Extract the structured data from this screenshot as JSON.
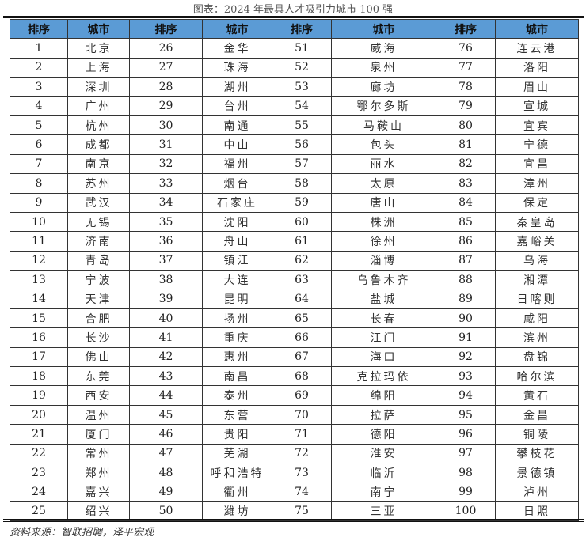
{
  "title": "图表：2024 年最具人才吸引力城市 100 强",
  "headers": [
    "排序",
    "城市",
    "排序",
    "城市",
    "排序",
    "城市",
    "排序",
    "城市"
  ],
  "header_color": "#5b9bd5",
  "rows": [
    [
      "1",
      "北京",
      "26",
      "金华",
      "51",
      "威海",
      "76",
      "连云港"
    ],
    [
      "2",
      "上海",
      "27",
      "珠海",
      "52",
      "泉州",
      "77",
      "洛阳"
    ],
    [
      "3",
      "深圳",
      "28",
      "湖州",
      "53",
      "廊坊",
      "78",
      "眉山"
    ],
    [
      "4",
      "广州",
      "29",
      "台州",
      "54",
      "鄂尔多斯",
      "79",
      "宣城"
    ],
    [
      "5",
      "杭州",
      "30",
      "南通",
      "55",
      "马鞍山",
      "80",
      "宜宾"
    ],
    [
      "6",
      "成都",
      "31",
      "中山",
      "56",
      "包头",
      "81",
      "宁德"
    ],
    [
      "7",
      "南京",
      "32",
      "福州",
      "57",
      "丽水",
      "82",
      "宜昌"
    ],
    [
      "8",
      "苏州",
      "33",
      "烟台",
      "58",
      "太原",
      "83",
      "漳州"
    ],
    [
      "9",
      "武汉",
      "34",
      "石家庄",
      "59",
      "唐山",
      "84",
      "保定"
    ],
    [
      "10",
      "无锡",
      "35",
      "沈阳",
      "60",
      "株洲",
      "85",
      "秦皇岛"
    ],
    [
      "11",
      "济南",
      "36",
      "舟山",
      "61",
      "徐州",
      "86",
      "嘉峪关"
    ],
    [
      "12",
      "青岛",
      "37",
      "镇江",
      "62",
      "淄博",
      "87",
      "乌海"
    ],
    [
      "13",
      "宁波",
      "38",
      "大连",
      "63",
      "乌鲁木齐",
      "88",
      "湘潭"
    ],
    [
      "14",
      "天津",
      "39",
      "昆明",
      "64",
      "盐城",
      "89",
      "日喀则"
    ],
    [
      "15",
      "合肥",
      "40",
      "扬州",
      "65",
      "长春",
      "90",
      "咸阳"
    ],
    [
      "16",
      "长沙",
      "41",
      "重庆",
      "66",
      "江门",
      "91",
      "滨州"
    ],
    [
      "17",
      "佛山",
      "42",
      "惠州",
      "67",
      "海口",
      "92",
      "盘锦"
    ],
    [
      "18",
      "东莞",
      "43",
      "南昌",
      "68",
      "克拉玛依",
      "93",
      "哈尔滨"
    ],
    [
      "19",
      "西安",
      "44",
      "泰州",
      "69",
      "绵阳",
      "94",
      "黄石"
    ],
    [
      "20",
      "温州",
      "45",
      "东营",
      "70",
      "拉萨",
      "95",
      "金昌"
    ],
    [
      "21",
      "厦门",
      "46",
      "贵阳",
      "71",
      "德阳",
      "96",
      "铜陵"
    ],
    [
      "22",
      "常州",
      "47",
      "芜湖",
      "72",
      "淮安",
      "97",
      "攀枝花"
    ],
    [
      "23",
      "郑州",
      "48",
      "呼和浩特",
      "73",
      "临沂",
      "98",
      "景德镇"
    ],
    [
      "24",
      "嘉兴",
      "49",
      "衢州",
      "74",
      "南宁",
      "99",
      "泸州"
    ],
    [
      "25",
      "绍兴",
      "50",
      "潍坊",
      "75",
      "三亚",
      "100",
      "日照"
    ]
  ],
  "source": "资料来源：智联招聘，泽平宏观"
}
